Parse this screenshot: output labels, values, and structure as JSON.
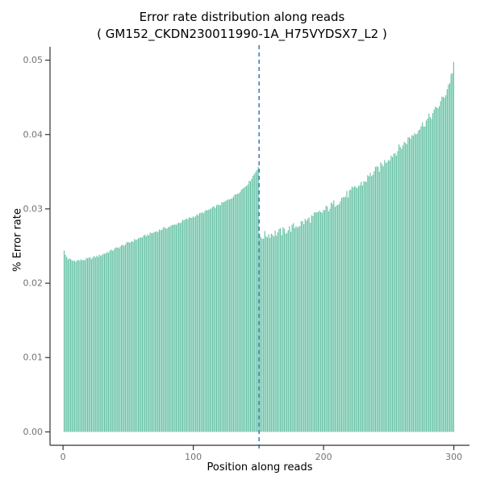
{
  "title": "Error rate distribution along reads",
  "subtitle": "( GM152_CKDN230011990-1A_H75VYDSX7_L2 )",
  "chart_data": {
    "type": "bar",
    "title": "Error rate distribution along reads",
    "subtitle": "( GM152_CKDN230011990-1A_H75VYDSX7_L2 )",
    "xlabel": "Position along reads",
    "ylabel": "% Error rate",
    "xlim": [
      -10,
      312
    ],
    "ylim": [
      -0.0018,
      0.0518
    ],
    "x_ticks": [
      0,
      100,
      200,
      300
    ],
    "y_ticks": [
      0.0,
      0.01,
      0.02,
      0.03,
      0.04,
      0.05
    ],
    "grid": false,
    "legend": "none",
    "bar_color": "#66C2A5",
    "axis_color": "#333333",
    "tick_label_color": "#737373",
    "read_length": 300,
    "vline": {
      "x": 150.5,
      "color": "#4682B4",
      "style": "dashed"
    },
    "noise": {
      "read1": 0.00018,
      "read2": 0.0006
    },
    "anchors": [
      [
        1,
        0.0243
      ],
      [
        2,
        0.0238
      ],
      [
        4,
        0.0233
      ],
      [
        8,
        0.023
      ],
      [
        14,
        0.0231
      ],
      [
        20,
        0.0233
      ],
      [
        28,
        0.0237
      ],
      [
        36,
        0.0243
      ],
      [
        45,
        0.025
      ],
      [
        55,
        0.0258
      ],
      [
        65,
        0.0265
      ],
      [
        75,
        0.0272
      ],
      [
        85,
        0.0278
      ],
      [
        95,
        0.0286
      ],
      [
        105,
        0.0293
      ],
      [
        115,
        0.0301
      ],
      [
        125,
        0.031
      ],
      [
        132,
        0.0318
      ],
      [
        138,
        0.0327
      ],
      [
        143,
        0.0336
      ],
      [
        147,
        0.0347
      ],
      [
        150,
        0.0357
      ],
      [
        151,
        0.0262
      ],
      [
        156,
        0.0265
      ],
      [
        162,
        0.0267
      ],
      [
        168,
        0.0269
      ],
      [
        174,
        0.0273
      ],
      [
        180,
        0.0278
      ],
      [
        187,
        0.0284
      ],
      [
        194,
        0.0291
      ],
      [
        200,
        0.0297
      ],
      [
        207,
        0.0305
      ],
      [
        213,
        0.0313
      ],
      [
        219,
        0.032
      ],
      [
        225,
        0.0328
      ],
      [
        231,
        0.0336
      ],
      [
        237,
        0.0347
      ],
      [
        243,
        0.0355
      ],
      [
        249,
        0.0367
      ],
      [
        255,
        0.0376
      ],
      [
        261,
        0.0386
      ],
      [
        267,
        0.0397
      ],
      [
        273,
        0.0408
      ],
      [
        279,
        0.0418
      ],
      [
        285,
        0.043
      ],
      [
        290,
        0.0443
      ],
      [
        294,
        0.0456
      ],
      [
        297,
        0.0472
      ],
      [
        299,
        0.0486
      ],
      [
        300,
        0.0497
      ]
    ]
  }
}
